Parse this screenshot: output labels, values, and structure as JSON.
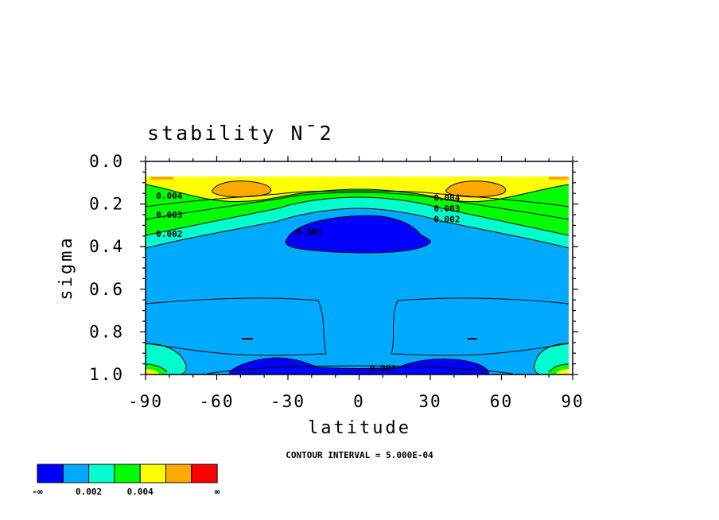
{
  "chart_data": {
    "type": "contour",
    "title": "stability N¯2",
    "xlabel": "latitude",
    "ylabel": "sigma",
    "xlim": [
      -90,
      90
    ],
    "ylim": [
      1.0,
      0.0
    ],
    "y_inverted": true,
    "x_ticks": [
      "-90",
      "-60",
      "-30",
      "0",
      "30",
      "60",
      "90"
    ],
    "y_ticks": [
      "0.0",
      "0.2",
      "0.4",
      "0.6",
      "0.8",
      "1.0"
    ],
    "contour_interval_text": "CONTOUR INTERVAL = 5.000E-04",
    "contour_interval": 0.0005,
    "contour_labels": [
      {
        "text": "0.004",
        "lat": -80,
        "sigma": 0.16
      },
      {
        "text": "0.003",
        "lat": -80,
        "sigma": 0.25
      },
      {
        "text": "0.002",
        "lat": -80,
        "sigma": 0.34
      },
      {
        "text": "0.001",
        "lat": -21,
        "sigma": 0.33
      },
      {
        "text": "0.004",
        "lat": 37,
        "sigma": 0.17
      },
      {
        "text": "0.003",
        "lat": 37,
        "sigma": 0.22
      },
      {
        "text": "0.002",
        "lat": 37,
        "sigma": 0.27
      },
      {
        "text": "0.001",
        "lat": 10,
        "sigma": 0.97
      }
    ],
    "colorbar": {
      "colors": [
        "#0000ff",
        "#00aaff",
        "#00ffcc",
        "#00ff00",
        "#ffff00",
        "#ffaa00",
        "#ff0000"
      ],
      "labels": [
        "-∞",
        "0.002",
        "0.004",
        "∞"
      ]
    }
  }
}
